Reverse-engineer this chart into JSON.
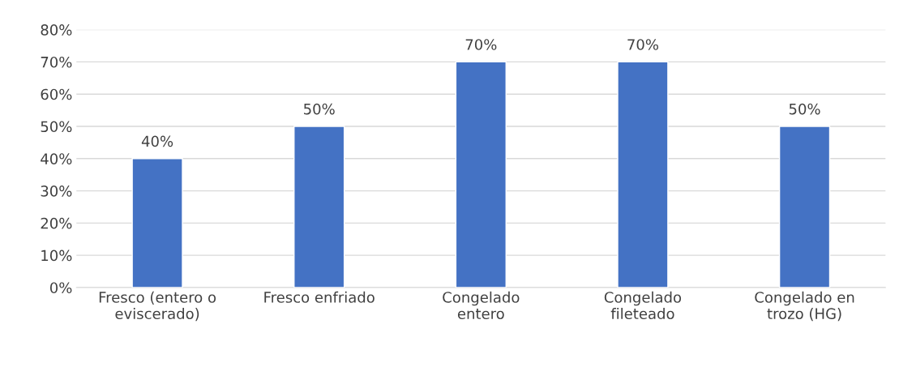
{
  "chart_data": {
    "type": "bar",
    "categories": [
      "Fresco (entero o\neviscerado)",
      "Fresco enfriado",
      "Congelado\nentero",
      "Congelado\nfileteado",
      "Congelado en\ntrozo (HG)"
    ],
    "values": [
      40,
      50,
      70,
      70,
      50
    ],
    "value_labels": [
      "40%",
      "50%",
      "70%",
      "70%",
      "50%"
    ],
    "color": "#4472c4",
    "ylim": [
      0,
      80
    ],
    "yticks": [
      {
        "value": 0,
        "label": "0%"
      },
      {
        "value": 10,
        "label": "10%"
      },
      {
        "value": 20,
        "label": "20%"
      },
      {
        "value": 30,
        "label": "30%"
      },
      {
        "value": 40,
        "label": "40%"
      },
      {
        "value": 50,
        "label": "50%"
      },
      {
        "value": 60,
        "label": "60%"
      },
      {
        "value": 70,
        "label": "70%"
      },
      {
        "value": 80,
        "label": "80%"
      }
    ],
    "grid": "y",
    "legend": false
  }
}
